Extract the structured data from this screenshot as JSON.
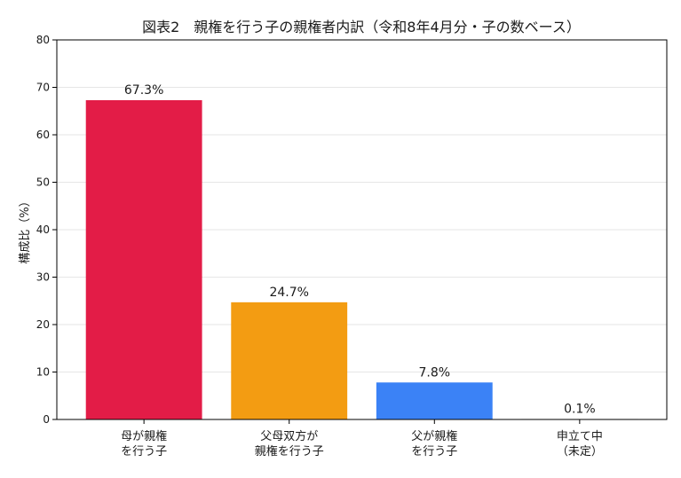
{
  "chart_data": {
    "type": "bar",
    "title": "図表2　親権を行う子の親権者内訳（令和8年4月分・子の数ベース）",
    "xlabel": "",
    "ylabel": "構成比（%）",
    "categories": [
      [
        "母が親権",
        "を行う子"
      ],
      [
        "父母双方が",
        "親権を行う子"
      ],
      [
        "父が親権",
        "を行う子"
      ],
      [
        "申立て中",
        "（未定）"
      ]
    ],
    "values": [
      67.3,
      24.7,
      7.8,
      0.1
    ],
    "value_labels": [
      "67.3%",
      "24.7%",
      "7.8%",
      "0.1%"
    ],
    "colors": [
      "#e31c47",
      "#f39c12",
      "#3b82f6",
      "#9ca3af"
    ],
    "ylim": [
      0,
      80
    ],
    "yticks": [
      0,
      10,
      20,
      30,
      40,
      50,
      60,
      70,
      80
    ],
    "grid": true,
    "legend": "none"
  }
}
